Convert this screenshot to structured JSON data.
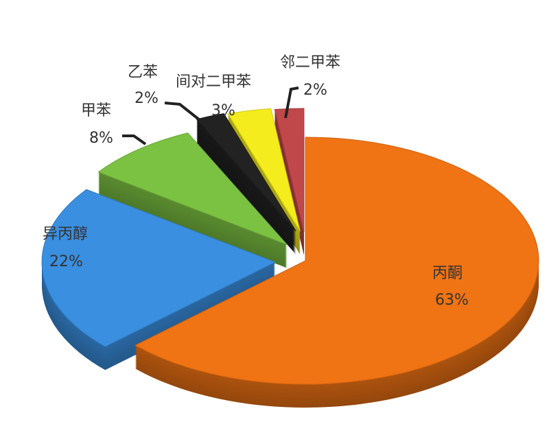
{
  "chart_data": {
    "type": "pie",
    "style": "3d-exploded",
    "slices": [
      {
        "name": "丙酮",
        "value": 63,
        "label": "63%",
        "color": "#f07314"
      },
      {
        "name": "异丙醇",
        "value": 22,
        "label": "22%",
        "color": "#3a8fe0"
      },
      {
        "name": "甲苯",
        "value": 8,
        "label": "8%",
        "color": "#7cc242"
      },
      {
        "name": "乙苯",
        "value": 2,
        "label": "2%",
        "color": "#222222"
      },
      {
        "name": "间对二甲苯",
        "value": 3,
        "label": "3%",
        "color": "#f4ec1c"
      },
      {
        "name": "邻二甲苯",
        "value": 2,
        "label": "2%",
        "color": "#c0474a"
      }
    ]
  }
}
